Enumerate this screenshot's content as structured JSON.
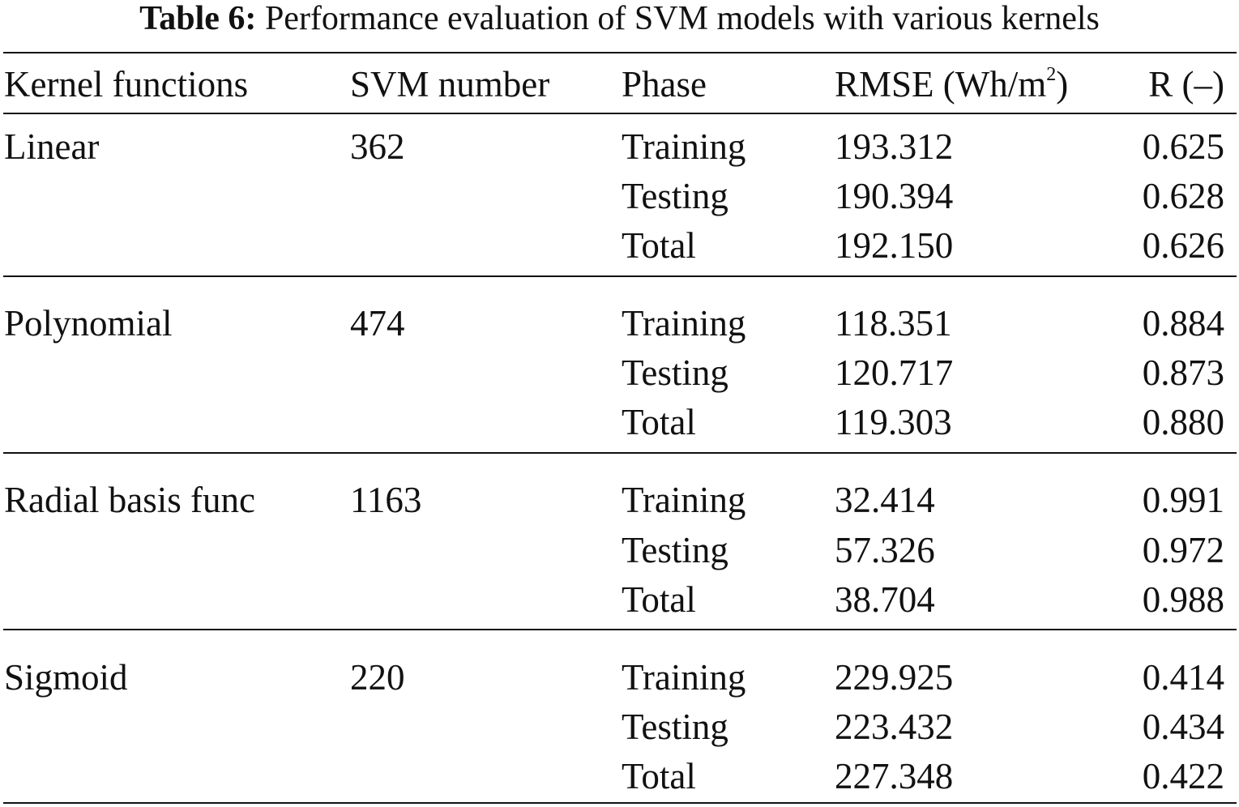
{
  "caption": {
    "label": "Table 6:",
    "text": "Performance evaluation of SVM models with various kernels"
  },
  "table": {
    "headers": {
      "kernel": "Kernel functions",
      "svm_number": "SVM number",
      "phase": "Phase",
      "rmse_prefix": "RMSE (Wh/m",
      "rmse_sup": "2",
      "rmse_suffix": ")",
      "r": "R (–)"
    },
    "groups": [
      {
        "kernel": "Linear",
        "svm_number": "362",
        "rows": [
          {
            "phase": "Training",
            "rmse": "193.312",
            "r": "0.625"
          },
          {
            "phase": "Testing",
            "rmse": "190.394",
            "r": "0.628"
          },
          {
            "phase": "Total",
            "rmse": "192.150",
            "r": "0.626"
          }
        ]
      },
      {
        "kernel": "Polynomial",
        "svm_number": "474",
        "rows": [
          {
            "phase": "Training",
            "rmse": "118.351",
            "r": "0.884"
          },
          {
            "phase": "Testing",
            "rmse": "120.717",
            "r": "0.873"
          },
          {
            "phase": "Total",
            "rmse": "119.303",
            "r": "0.880"
          }
        ]
      },
      {
        "kernel": "Radial basis func",
        "svm_number": "1163",
        "rows": [
          {
            "phase": "Training",
            "rmse": "32.414",
            "r": "0.991"
          },
          {
            "phase": "Testing",
            "rmse": "57.326",
            "r": "0.972"
          },
          {
            "phase": "Total",
            "rmse": "38.704",
            "r": "0.988"
          }
        ]
      },
      {
        "kernel": "Sigmoid",
        "svm_number": "220",
        "rows": [
          {
            "phase": "Training",
            "rmse": "229.925",
            "r": "0.414"
          },
          {
            "phase": "Testing",
            "rmse": "223.432",
            "r": "0.434"
          },
          {
            "phase": "Total",
            "rmse": "227.348",
            "r": "0.422"
          }
        ]
      }
    ]
  }
}
